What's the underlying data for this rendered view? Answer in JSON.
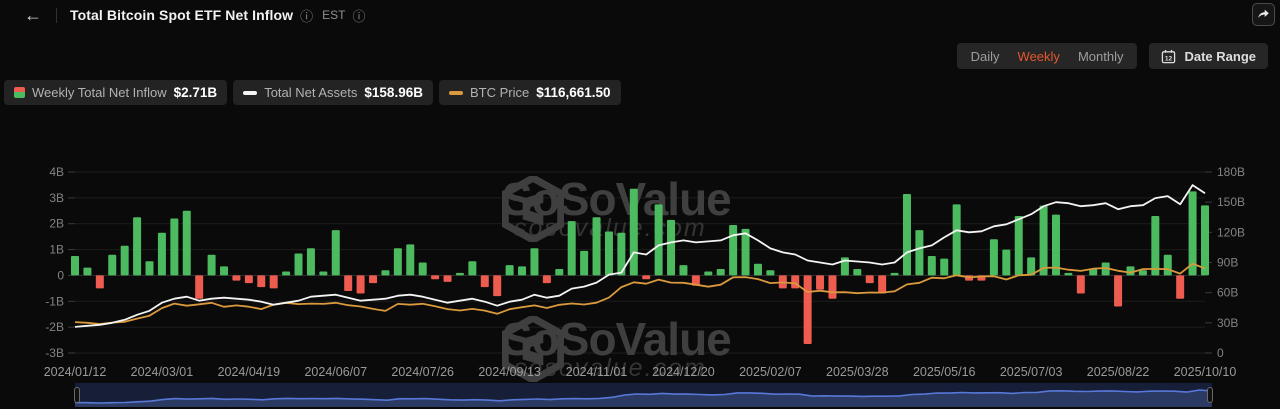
{
  "header": {
    "back_glyph": "←",
    "title": "Total Bitcoin Spot ETF Net Inflow",
    "info_glyph": "ⓘ",
    "timezone": "EST"
  },
  "controls": {
    "tabs": [
      {
        "label": "Daily",
        "active": false
      },
      {
        "label": "Weekly",
        "active": true
      },
      {
        "label": "Monthly",
        "active": false
      }
    ],
    "date_range_label": "Date Range"
  },
  "legend": [
    {
      "icon": "inflow-bar-swatch",
      "label": "Weekly Total Net Inflow",
      "value": "$2.71B"
    },
    {
      "icon": "white-dash",
      "label": "Total Net Assets",
      "value": "$158.96B"
    },
    {
      "icon": "orange-dash",
      "label": "BTC Price",
      "value": "$116,661.50"
    }
  ],
  "watermark": {
    "brand": "SoSoValue",
    "domain": "sosovalue.com"
  },
  "colors": {
    "green": "#4cba5f",
    "red": "#ee5b4f",
    "assets_line": "#f4f4f4",
    "btc_line": "#d9993c",
    "grid": "#1d1d1d",
    "zero_line": "#323232",
    "tick": "#3a3a3a",
    "axis_text": "#828282",
    "date_text": "#9a9a9a",
    "tab_active": "#e4572e",
    "nav_line": "#5878d8",
    "nav_fill": "#2a3a63",
    "nav_bg": "#161e38"
  },
  "chart_data": {
    "type": "bar",
    "subtype": "combo-bar-two-lines",
    "title": "Total Bitcoin Spot ETF Net Inflow (Weekly)",
    "weeks": 92,
    "start_date": "2024/01/12",
    "x_labels": [
      "2024/01/12",
      "2024/03/01",
      "2024/04/19",
      "2024/06/07",
      "2024/07/26",
      "2024/09/13",
      "2024/11/01",
      "2024/12/20",
      "2025/02/07",
      "2025/03/28",
      "2025/05/16",
      "2025/07/03",
      "2025/08/22",
      "2025/10/10"
    ],
    "x_label_step": 7,
    "left_axis": {
      "ticks": [
        "4B",
        "3B",
        "2B",
        "1B",
        "0",
        "-1B",
        "-2B",
        "-3B"
      ],
      "range": [
        -3,
        4
      ],
      "unit": "USD B"
    },
    "right_axis": {
      "ticks": [
        "180B",
        "150B",
        "120B",
        "90B",
        "60B",
        "30B",
        "0"
      ],
      "range": [
        0,
        180
      ],
      "unit": "USD B"
    },
    "btc_hidden_axis_range_k": [
      0,
      250
    ],
    "grid": true,
    "legend_position": "top-left",
    "series": [
      {
        "name": "Weekly Total Net Inflow ($B)",
        "type": "bar",
        "axis": "left",
        "values": [
          0.75,
          0.3,
          -0.5,
          0.8,
          1.15,
          2.25,
          0.55,
          1.65,
          2.2,
          2.5,
          -0.9,
          0.8,
          0.35,
          -0.2,
          -0.3,
          -0.45,
          -0.5,
          0.15,
          0.85,
          1.05,
          0.15,
          1.75,
          -0.6,
          -0.7,
          -0.3,
          0.2,
          1.05,
          1.2,
          0.5,
          -0.15,
          -0.25,
          0.1,
          0.55,
          -0.45,
          -0.8,
          0.4,
          0.35,
          1.05,
          -0.3,
          0.25,
          2.1,
          0.95,
          2.25,
          1.7,
          1.65,
          3.35,
          -0.15,
          2.75,
          2.15,
          0.4,
          -0.4,
          0.15,
          0.25,
          1.95,
          1.8,
          0.45,
          0.2,
          -0.5,
          -0.5,
          -2.65,
          -0.55,
          -0.9,
          0.7,
          0.25,
          -0.3,
          -0.7,
          0.1,
          3.15,
          1.75,
          0.75,
          0.65,
          2.75,
          -0.2,
          -0.2,
          1.4,
          1.0,
          2.3,
          0.7,
          2.7,
          2.35,
          0.1,
          -0.7,
          0.25,
          0.5,
          -1.2,
          0.35,
          0.2,
          2.3,
          0.8,
          -0.9,
          3.25,
          2.71
        ]
      },
      {
        "name": "Total Net Assets ($B)",
        "type": "line",
        "axis": "right",
        "values": [
          26,
          27,
          28,
          30,
          33,
          38,
          42,
          50,
          54,
          56,
          52,
          54,
          55,
          54,
          53,
          51,
          48,
          50,
          52,
          56,
          57,
          58,
          55,
          52,
          53,
          54,
          57,
          58,
          56,
          53,
          50,
          52,
          54,
          51,
          47,
          51,
          53,
          58,
          55,
          57,
          64,
          66,
          70,
          78,
          80,
          100,
          98,
          107,
          110,
          112,
          110,
          111,
          112,
          117,
          119,
          112,
          104,
          100,
          98,
          92,
          90,
          88,
          92,
          91,
          90,
          88,
          90,
          100,
          104,
          107,
          115,
          122,
          120,
          121,
          126,
          128,
          133,
          138,
          146,
          150,
          149,
          146,
          147,
          149,
          143,
          146,
          147,
          154,
          156,
          148,
          167,
          158.96
        ]
      },
      {
        "name": "BTC Price ($k)",
        "type": "line",
        "axis": "btc",
        "values": [
          42.7,
          41.7,
          40.0,
          42.0,
          43.1,
          47.5,
          51.5,
          62.0,
          68.3,
          65.3,
          67.2,
          69.4,
          63.8,
          65.7,
          63.9,
          60.7,
          66.9,
          69.3,
          67.5,
          68.3,
          67.8,
          69.3,
          66.0,
          64.2,
          60.9,
          58.2,
          67.8,
          66.7,
          67.9,
          64.6,
          60.7,
          58.7,
          60.9,
          58.5,
          54.2,
          60.5,
          63.2,
          65.8,
          62.1,
          66.6,
          68.4,
          67.0,
          69.5,
          76.5,
          91.0,
          97.7,
          95.7,
          101.4,
          97.3,
          97.0,
          94.3,
          91.6,
          94.3,
          104.5,
          104.8,
          102.1,
          96.5,
          97.5,
          96.2,
          84.3,
          86.1,
          83.9,
          84.0,
          82.6,
          83.5,
          83.4,
          85.2,
          94.7,
          96.9,
          104.0,
          103.2,
          107.3,
          104.6,
          105.6,
          106.1,
          101.5,
          107.3,
          108.2,
          117.5,
          117.9,
          115.0,
          113.4,
          116.5,
          117.4,
          113.5,
          111.0,
          115.9,
          116.1,
          115.7,
          109.6,
          123.3,
          116.661
        ]
      }
    ],
    "navigator": {
      "type": "area",
      "source": "BTC Price ($k)"
    }
  }
}
